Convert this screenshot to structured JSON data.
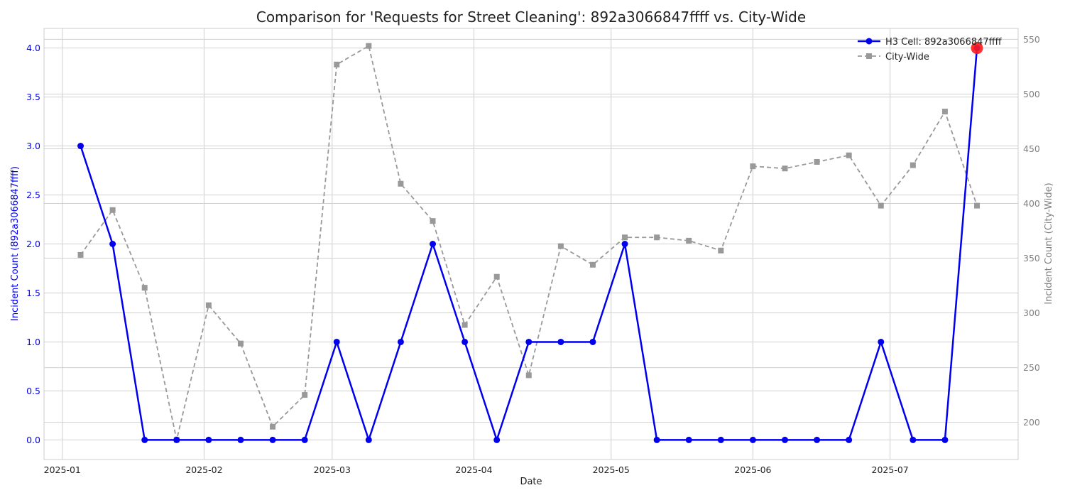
{
  "chart_data": {
    "type": "line",
    "title": "Comparison for 'Requests for Street Cleaning': 892a3066847ffff vs. City-Wide",
    "xlabel": "Date",
    "ylabel_left": "Incident Count (892a3066847ffff)",
    "ylabel_right": "Incident Count (City-Wide)",
    "x_ticks": [
      {
        "date": "2025-01-01",
        "label": "2025-01"
      },
      {
        "date": "2025-02-01",
        "label": "2025-02"
      },
      {
        "date": "2025-03-01",
        "label": "2025-03"
      },
      {
        "date": "2025-04-01",
        "label": "2025-04"
      },
      {
        "date": "2025-05-01",
        "label": "2025-05"
      },
      {
        "date": "2025-06-01",
        "label": "2025-06"
      },
      {
        "date": "2025-07-01",
        "label": "2025-07"
      }
    ],
    "y_left": {
      "range": [
        -0.2,
        4.2
      ],
      "ticks": [
        "0.0",
        "0.5",
        "1.0",
        "1.5",
        "2.0",
        "2.5",
        "3.0",
        "3.5",
        "4.0"
      ],
      "color": "#0000ee"
    },
    "y_right": {
      "range": [
        166,
        560
      ],
      "ticks": [
        "200",
        "250",
        "300",
        "350",
        "400",
        "450",
        "500",
        "550"
      ],
      "color": "#808080"
    },
    "grid": true,
    "legend_position": "top-right",
    "x": [
      "2025-01-05",
      "2025-01-12",
      "2025-01-19",
      "2025-01-26",
      "2025-02-02",
      "2025-02-09",
      "2025-02-16",
      "2025-02-23",
      "2025-03-02",
      "2025-03-09",
      "2025-03-16",
      "2025-03-23",
      "2025-03-30",
      "2025-04-06",
      "2025-04-13",
      "2025-04-20",
      "2025-04-27",
      "2025-05-04",
      "2025-05-11",
      "2025-05-18",
      "2025-05-25",
      "2025-06-01",
      "2025-06-08",
      "2025-06-15",
      "2025-06-22",
      "2025-06-29",
      "2025-07-06",
      "2025-07-13",
      "2025-07-20"
    ],
    "series": [
      {
        "name": "H3 Cell: 892a3066847ffff",
        "axis": "left",
        "color": "#0000ee",
        "style": "solid",
        "marker": "circle",
        "values": [
          3,
          2,
          0,
          0,
          0,
          0,
          0,
          0,
          1,
          0,
          1,
          2,
          1,
          0,
          1,
          1,
          1,
          2,
          0,
          0,
          0,
          0,
          0,
          0,
          0,
          1,
          0,
          0,
          4
        ]
      },
      {
        "name": "City-Wide",
        "axis": "right",
        "color": "#999999",
        "style": "dashed",
        "marker": "square",
        "values": [
          353,
          394,
          323,
          184,
          307,
          272,
          196,
          225,
          527,
          544,
          418,
          384,
          289,
          333,
          243,
          361,
          344,
          369,
          369,
          366,
          357,
          434,
          432,
          438,
          444,
          398,
          435,
          484,
          398
        ]
      }
    ],
    "highlight": {
      "series": 0,
      "index": 28,
      "color": "#ff1a1a"
    }
  }
}
